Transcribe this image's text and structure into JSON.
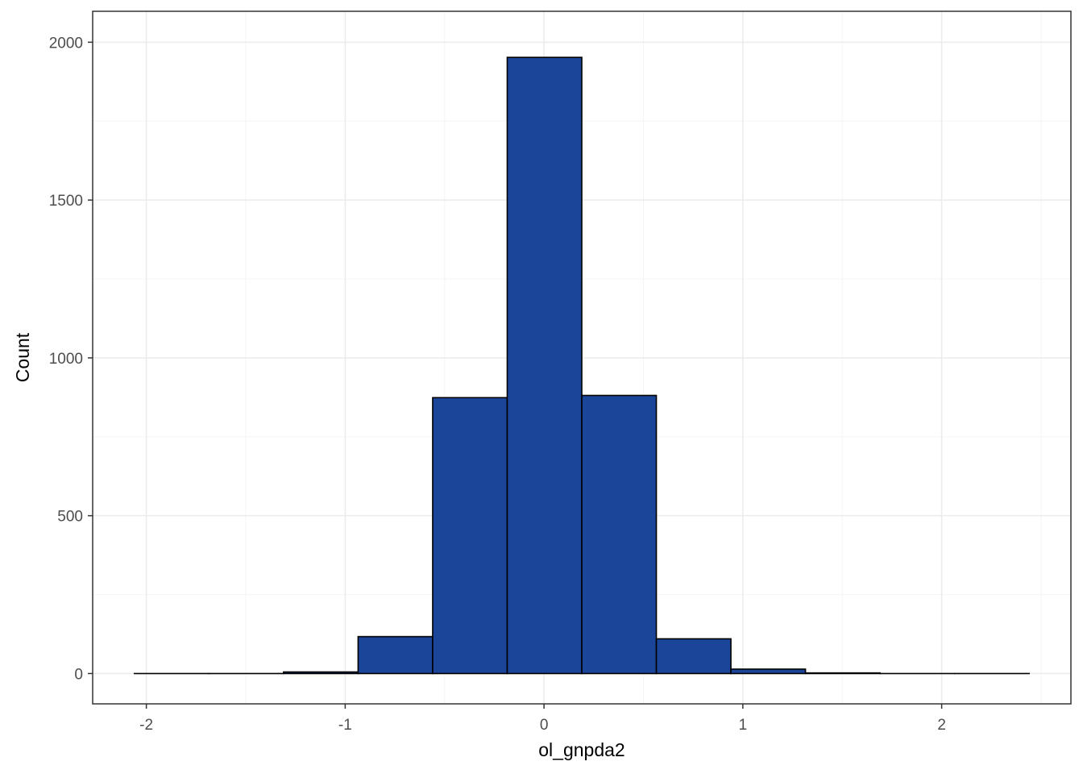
{
  "chart_data": {
    "type": "bar",
    "subtype": "histogram",
    "xlabel": "ol_gnpda2",
    "ylabel": "Count",
    "xlim": [
      -2.27,
      2.65
    ],
    "ylim": [
      -96,
      2098
    ],
    "x_ticks": [
      -2,
      -1,
      0,
      1,
      2
    ],
    "x_tick_labels": [
      "-2",
      "-1",
      "0",
      "1",
      "2"
    ],
    "y_ticks": [
      0,
      500,
      1000,
      1500,
      2000
    ],
    "y_tick_labels": [
      "0",
      "500",
      "1000",
      "1500",
      "2000"
    ],
    "grid": true,
    "theme": "bw",
    "bins": [
      {
        "x0": -2.06,
        "x1": -1.685,
        "count": 0
      },
      {
        "x0": -1.685,
        "x1": -1.31,
        "count": 0
      },
      {
        "x0": -1.31,
        "x1": -0.935,
        "count": 5
      },
      {
        "x0": -0.935,
        "x1": -0.56,
        "count": 117
      },
      {
        "x0": -0.56,
        "x1": -0.185,
        "count": 874
      },
      {
        "x0": -0.185,
        "x1": 0.19,
        "count": 1952
      },
      {
        "x0": 0.19,
        "x1": 0.565,
        "count": 881
      },
      {
        "x0": 0.565,
        "x1": 0.94,
        "count": 110
      },
      {
        "x0": 0.94,
        "x1": 1.315,
        "count": 14
      },
      {
        "x0": 1.315,
        "x1": 1.69,
        "count": 2
      },
      {
        "x0": 1.69,
        "x1": 2.065,
        "count": 0
      },
      {
        "x0": 2.065,
        "x1": 2.44,
        "count": 0
      }
    ],
    "colors": {
      "fill": "#1a4599",
      "outline": "#000000",
      "panel_border": "#333333",
      "grid_major": "#ebebeb",
      "grid_minor": "#f5f5f5"
    }
  }
}
